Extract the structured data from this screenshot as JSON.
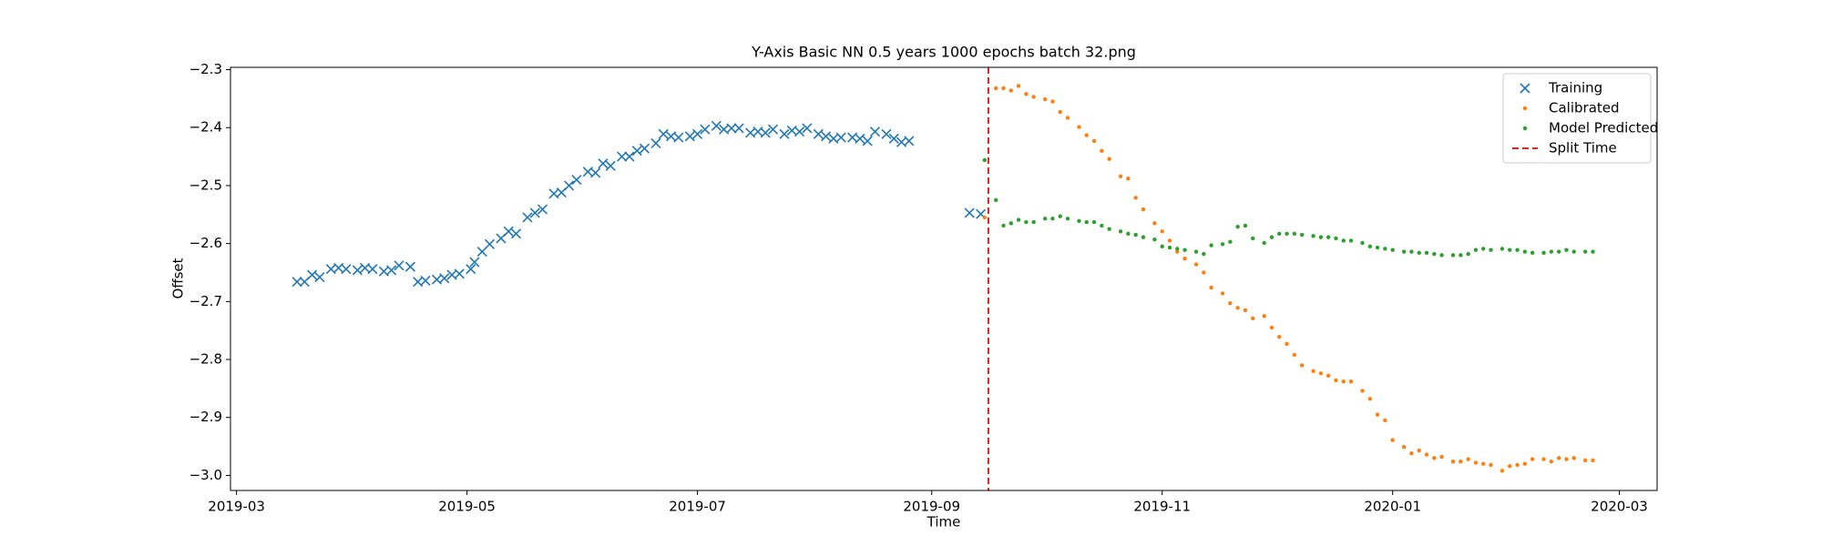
{
  "chart_data": {
    "type": "scatter",
    "title": "Y-Axis Basic NN 0.5 years 1000 epochs batch 32.png",
    "xlabel": "Time",
    "ylabel": "Offset",
    "xlim": [
      17954.4,
      18332
    ],
    "ylim": [
      -3.026,
      -2.296
    ],
    "xticks": [
      {
        "value": 17956,
        "label": "2019-03"
      },
      {
        "value": 18017,
        "label": "2019-05"
      },
      {
        "value": 18078,
        "label": "2019-07"
      },
      {
        "value": 18140,
        "label": "2019-09"
      },
      {
        "value": 18201,
        "label": "2019-11"
      },
      {
        "value": 18262,
        "label": "2020-01"
      },
      {
        "value": 18322,
        "label": "2020-03"
      }
    ],
    "yticks": [
      {
        "value": -2.3,
        "label": "−2.3"
      },
      {
        "value": -2.4,
        "label": "−2.4"
      },
      {
        "value": -2.5,
        "label": "−2.5"
      },
      {
        "value": -2.6,
        "label": "−2.6"
      },
      {
        "value": -2.7,
        "label": "−2.7"
      },
      {
        "value": -2.8,
        "label": "−2.8"
      },
      {
        "value": -2.9,
        "label": "−2.9"
      },
      {
        "value": -3.0,
        "label": "−3.0"
      }
    ],
    "legend": "upper right",
    "series": [
      {
        "name": "Training",
        "marker": "x",
        "color": "#1f77b4",
        "x": [
          17972,
          17974,
          17976,
          17978,
          17981,
          17983,
          17985,
          17988,
          17990,
          17992,
          17995,
          17997,
          17999,
          18002,
          18004,
          18006,
          18009,
          18011,
          18013,
          18015,
          18018,
          18019,
          18021,
          18023,
          18026,
          18028,
          18030,
          18033,
          18035,
          18037,
          18040,
          18042,
          18044,
          18046,
          18049,
          18051,
          18053,
          18055,
          18058,
          18060,
          18062,
          18064,
          18067,
          18069,
          18071,
          18073,
          18076,
          18078,
          18080,
          18083,
          18085,
          18087,
          18089,
          18092,
          18094,
          18096,
          18098,
          18101,
          18103,
          18105,
          18107,
          18110,
          18112,
          18114,
          18116,
          18119,
          18121,
          18123,
          18125,
          18128,
          18130,
          18132,
          18134,
          18150,
          18153
        ],
        "values": [
          -2.666,
          -2.666,
          -2.654,
          -2.658,
          -2.644,
          -2.642,
          -2.644,
          -2.646,
          -2.642,
          -2.644,
          -2.648,
          -2.646,
          -2.638,
          -2.64,
          -2.666,
          -2.664,
          -2.662,
          -2.66,
          -2.654,
          -2.652,
          -2.644,
          -2.632,
          -2.614,
          -2.601,
          -2.591,
          -2.579,
          -2.583,
          -2.555,
          -2.547,
          -2.541,
          -2.514,
          -2.512,
          -2.5,
          -2.49,
          -2.476,
          -2.478,
          -2.462,
          -2.466,
          -2.45,
          -2.45,
          -2.44,
          -2.436,
          -2.427,
          -2.411,
          -2.415,
          -2.417,
          -2.415,
          -2.411,
          -2.403,
          -2.397,
          -2.403,
          -2.401,
          -2.401,
          -2.409,
          -2.407,
          -2.409,
          -2.403,
          -2.411,
          -2.405,
          -2.407,
          -2.401,
          -2.411,
          -2.415,
          -2.419,
          -2.417,
          -2.417,
          -2.419,
          -2.423,
          -2.407,
          -2.411,
          -2.419,
          -2.425,
          -2.423,
          -2.547,
          -2.549
        ]
      },
      {
        "name": "Calibrated",
        "marker": "dot",
        "color": "#ff7f0e",
        "x": [
          18154,
          18157,
          18159,
          18161,
          18163,
          18165,
          18167,
          18170,
          18172,
          18174,
          18176,
          18179,
          18181,
          18183,
          18185,
          18187,
          18190,
          18192,
          18194,
          18196,
          18199,
          18201,
          18203,
          18205,
          18207,
          18210,
          18212,
          18214,
          18217,
          18219,
          18221,
          18223,
          18225,
          18228,
          18230,
          18232,
          18234,
          18236,
          18238,
          18241,
          18243,
          18245,
          18247,
          18249,
          18251,
          18254,
          18256,
          18258,
          18260,
          18262,
          18265,
          18267,
          18269,
          18271,
          18273,
          18275,
          18278,
          18280,
          18282,
          18284,
          18286,
          18288,
          18291,
          18293,
          18295,
          18297,
          18299,
          18302,
          18304,
          18306,
          18308,
          18310,
          18313,
          18315
        ],
        "values": [
          -2.555,
          -2.332,
          -2.332,
          -2.336,
          -2.328,
          -2.342,
          -2.347,
          -2.351,
          -2.355,
          -2.373,
          -2.383,
          -2.399,
          -2.413,
          -2.423,
          -2.44,
          -2.454,
          -2.484,
          -2.488,
          -2.521,
          -2.541,
          -2.565,
          -2.579,
          -2.595,
          -2.614,
          -2.626,
          -2.636,
          -2.65,
          -2.676,
          -2.686,
          -2.703,
          -2.711,
          -2.715,
          -2.729,
          -2.725,
          -2.745,
          -2.761,
          -2.773,
          -2.792,
          -2.81,
          -2.82,
          -2.824,
          -2.828,
          -2.836,
          -2.838,
          -2.838,
          -2.854,
          -2.868,
          -2.895,
          -2.905,
          -2.939,
          -2.951,
          -2.962,
          -2.957,
          -2.964,
          -2.97,
          -2.968,
          -2.976,
          -2.976,
          -2.972,
          -2.978,
          -2.98,
          -2.982,
          -2.992,
          -2.984,
          -2.982,
          -2.98,
          -2.972,
          -2.972,
          -2.976,
          -2.97,
          -2.972,
          -2.97,
          -2.974,
          -2.974
        ]
      },
      {
        "name": "Model Predicted",
        "marker": "dot",
        "color": "#2ca02c",
        "x": [
          18154,
          18157,
          18159,
          18161,
          18163,
          18165,
          18167,
          18170,
          18172,
          18174,
          18176,
          18179,
          18181,
          18183,
          18185,
          18187,
          18190,
          18192,
          18194,
          18196,
          18199,
          18201,
          18203,
          18205,
          18207,
          18210,
          18212,
          18214,
          18217,
          18219,
          18221,
          18223,
          18225,
          18228,
          18230,
          18232,
          18234,
          18236,
          18238,
          18241,
          18243,
          18245,
          18247,
          18249,
          18251,
          18254,
          18256,
          18258,
          18260,
          18262,
          18265,
          18267,
          18269,
          18271,
          18273,
          18275,
          18278,
          18280,
          18282,
          18284,
          18286,
          18288,
          18291,
          18293,
          18295,
          18297,
          18299,
          18302,
          18304,
          18306,
          18308,
          18310,
          18313,
          18315
        ],
        "values": [
          -2.456,
          -2.525,
          -2.569,
          -2.565,
          -2.559,
          -2.563,
          -2.563,
          -2.557,
          -2.557,
          -2.553,
          -2.557,
          -2.561,
          -2.563,
          -2.563,
          -2.569,
          -2.575,
          -2.579,
          -2.583,
          -2.585,
          -2.589,
          -2.593,
          -2.605,
          -2.607,
          -2.609,
          -2.611,
          -2.614,
          -2.618,
          -2.603,
          -2.601,
          -2.597,
          -2.571,
          -2.569,
          -2.591,
          -2.599,
          -2.589,
          -2.583,
          -2.583,
          -2.583,
          -2.585,
          -2.587,
          -2.589,
          -2.589,
          -2.591,
          -2.595,
          -2.595,
          -2.599,
          -2.605,
          -2.607,
          -2.609,
          -2.611,
          -2.614,
          -2.614,
          -2.616,
          -2.616,
          -2.618,
          -2.62,
          -2.62,
          -2.62,
          -2.618,
          -2.611,
          -2.609,
          -2.611,
          -2.609,
          -2.611,
          -2.611,
          -2.614,
          -2.616,
          -2.616,
          -2.614,
          -2.614,
          -2.611,
          -2.614,
          -2.614,
          -2.614
        ]
      },
      {
        "name": "Split Time",
        "marker": "vline",
        "color": "#d62728",
        "x": 18155
      }
    ]
  }
}
